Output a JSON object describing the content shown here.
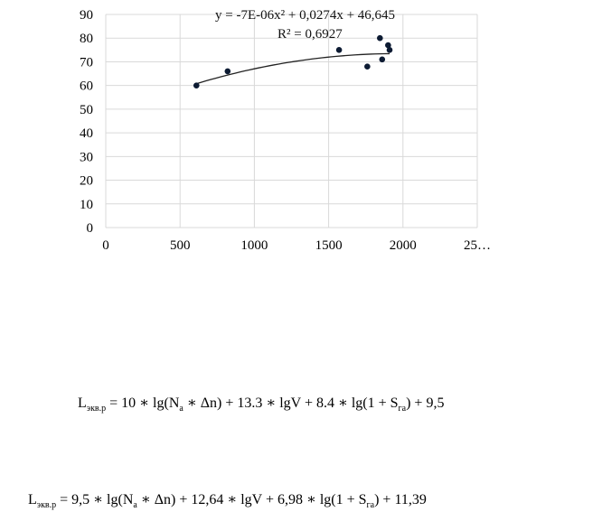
{
  "chart_data": {
    "type": "scatter",
    "x": [
      610,
      820,
      1570,
      1760,
      1845,
      1860,
      1900,
      1910
    ],
    "y": [
      60,
      66,
      75,
      68,
      80,
      71,
      77,
      75
    ],
    "xlim": [
      0,
      2500
    ],
    "ylim": [
      0,
      90
    ],
    "x_ticks": [
      "0",
      "500",
      "1000",
      "1500",
      "2000",
      "25…"
    ],
    "y_ticks": [
      "0",
      "10",
      "20",
      "30",
      "40",
      "50",
      "60",
      "70",
      "80",
      "90"
    ],
    "grid": true,
    "trendline": {
      "type": "polynomial",
      "coefficients": [
        -7e-06,
        0.0274,
        46.645
      ],
      "x_range": [
        610,
        1910
      ]
    },
    "point_color": "#0d1b33",
    "annotations": {
      "equation": "y = -7E-06x² + 0,0274x + 46,645",
      "r2": "R² = 0,6927"
    }
  },
  "formulas": {
    "f1": {
      "L": "L",
      "L_sub": "экв.р",
      "eq": " = 10 ∗ lg(N",
      "N_sub": "a",
      "mid": " ∗ Δn) + 13.3 ∗ lgV + 8.4 ∗ lg(1 + S",
      "S_sub": "га",
      "end": ") + 9,5"
    },
    "f2": {
      "L": "L",
      "L_sub": "экв.р",
      "eq": " = 9,5 ∗ lg(N",
      "N_sub": "a",
      "mid": " ∗ Δn) + 12,64 ∗ lgV + 6,98 ∗ lg(1 + S",
      "S_sub": "га",
      "end": ") + 11,39"
    }
  }
}
